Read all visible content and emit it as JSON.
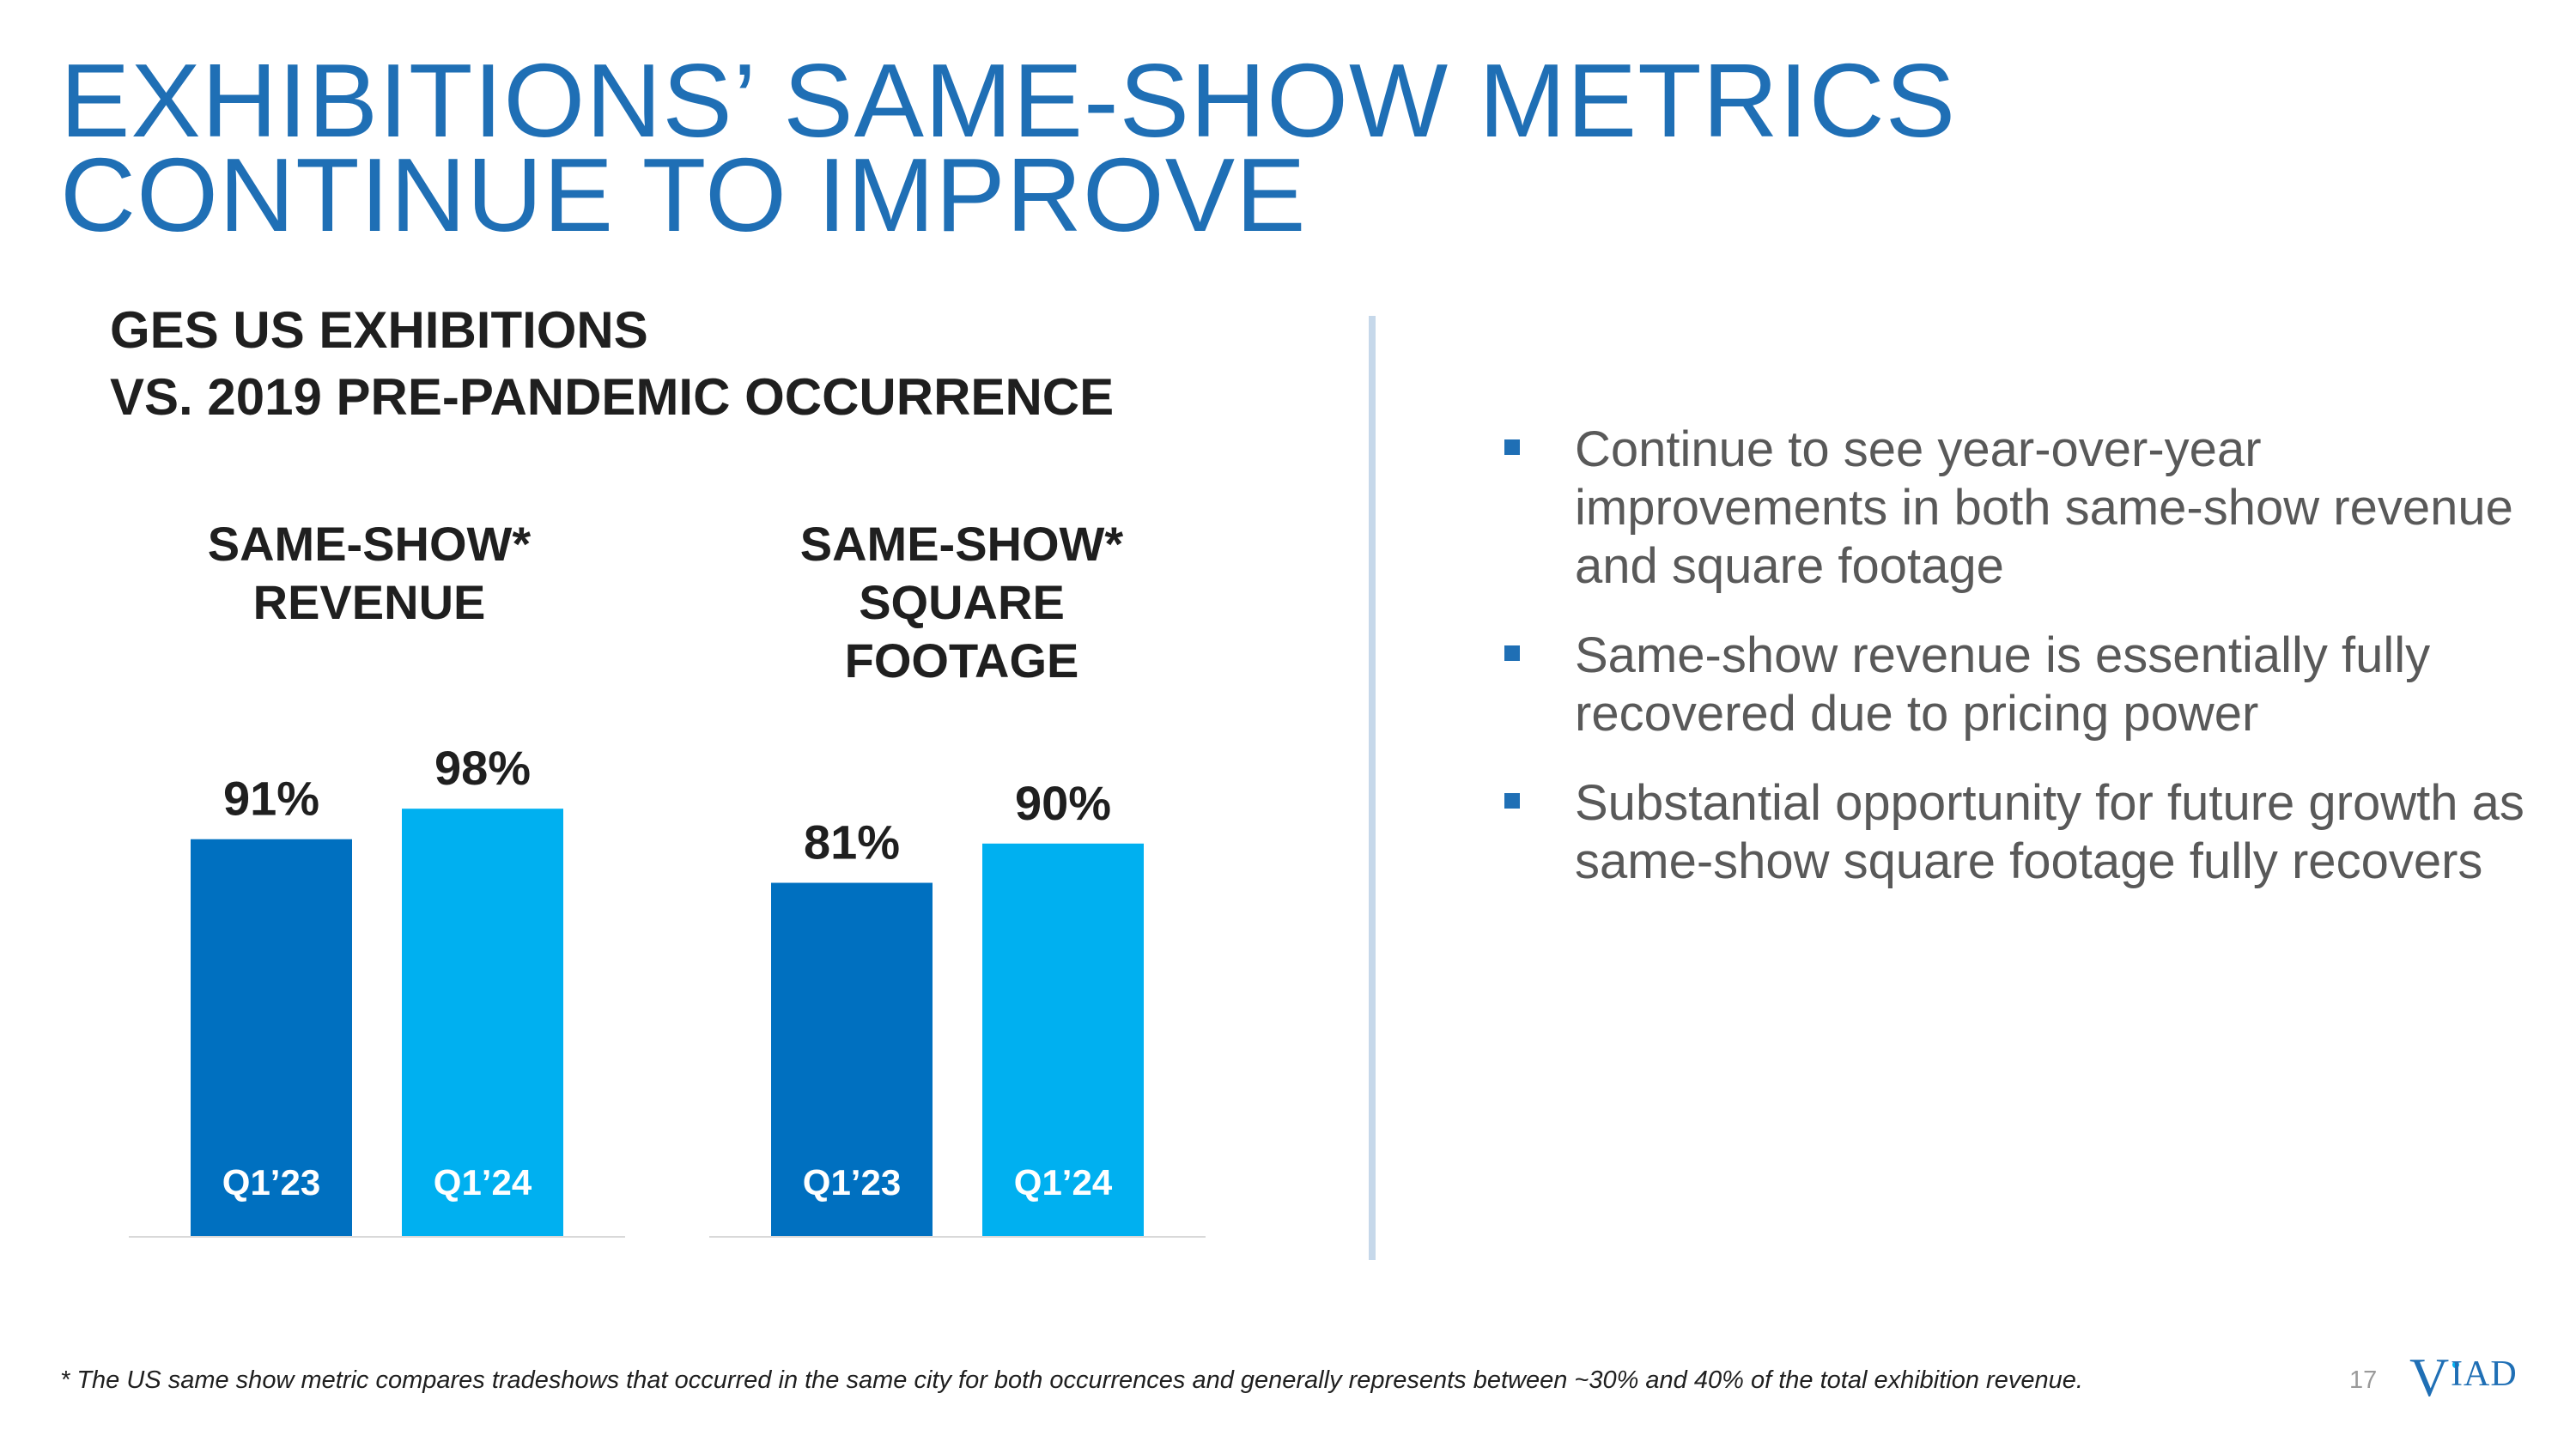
{
  "slide": {
    "title_line1": "EXHIBITIONS’ SAME-SHOW METRICS",
    "title_line2": "CONTINUE TO IMPROVE",
    "subtitle_line1": "GES US EXHIBITIONS",
    "subtitle_line2": "VS. 2019 PRE-PANDEMIC OCCURRENCE",
    "footnote": "*  The US same show metric compares tradeshows that occurred in the same city for both occurrences and generally represents between ~30% and 40% of the total exhibition revenue.",
    "page_number": "17",
    "logo_text": "VIAD"
  },
  "colors": {
    "title": "#1F6FB5",
    "q1_23": "#0070C0",
    "q1_24": "#00B0F0",
    "bullet": "#1F6FB5"
  },
  "chart_data": [
    {
      "type": "bar",
      "title_lines": [
        "SAME-SHOW*",
        "REVENUE"
      ],
      "categories": [
        "Q1’23",
        "Q1’24"
      ],
      "values": [
        91,
        98
      ],
      "data_labels": [
        "91%",
        "98%"
      ],
      "ylim": [
        0,
        100
      ]
    },
    {
      "type": "bar",
      "title_lines": [
        "SAME-SHOW*",
        "SQUARE",
        "FOOTAGE"
      ],
      "categories": [
        "Q1’23",
        "Q1’24"
      ],
      "values": [
        81,
        90
      ],
      "data_labels": [
        "81%",
        "90%"
      ],
      "ylim": [
        0,
        100
      ]
    }
  ],
  "bullets": [
    "Continue to see year-over-year improvements in both same-show revenue and square footage",
    "Same-show revenue is essentially fully recovered due to pricing power",
    "Substantial opportunity for future growth as same-show square footage fully recovers"
  ]
}
